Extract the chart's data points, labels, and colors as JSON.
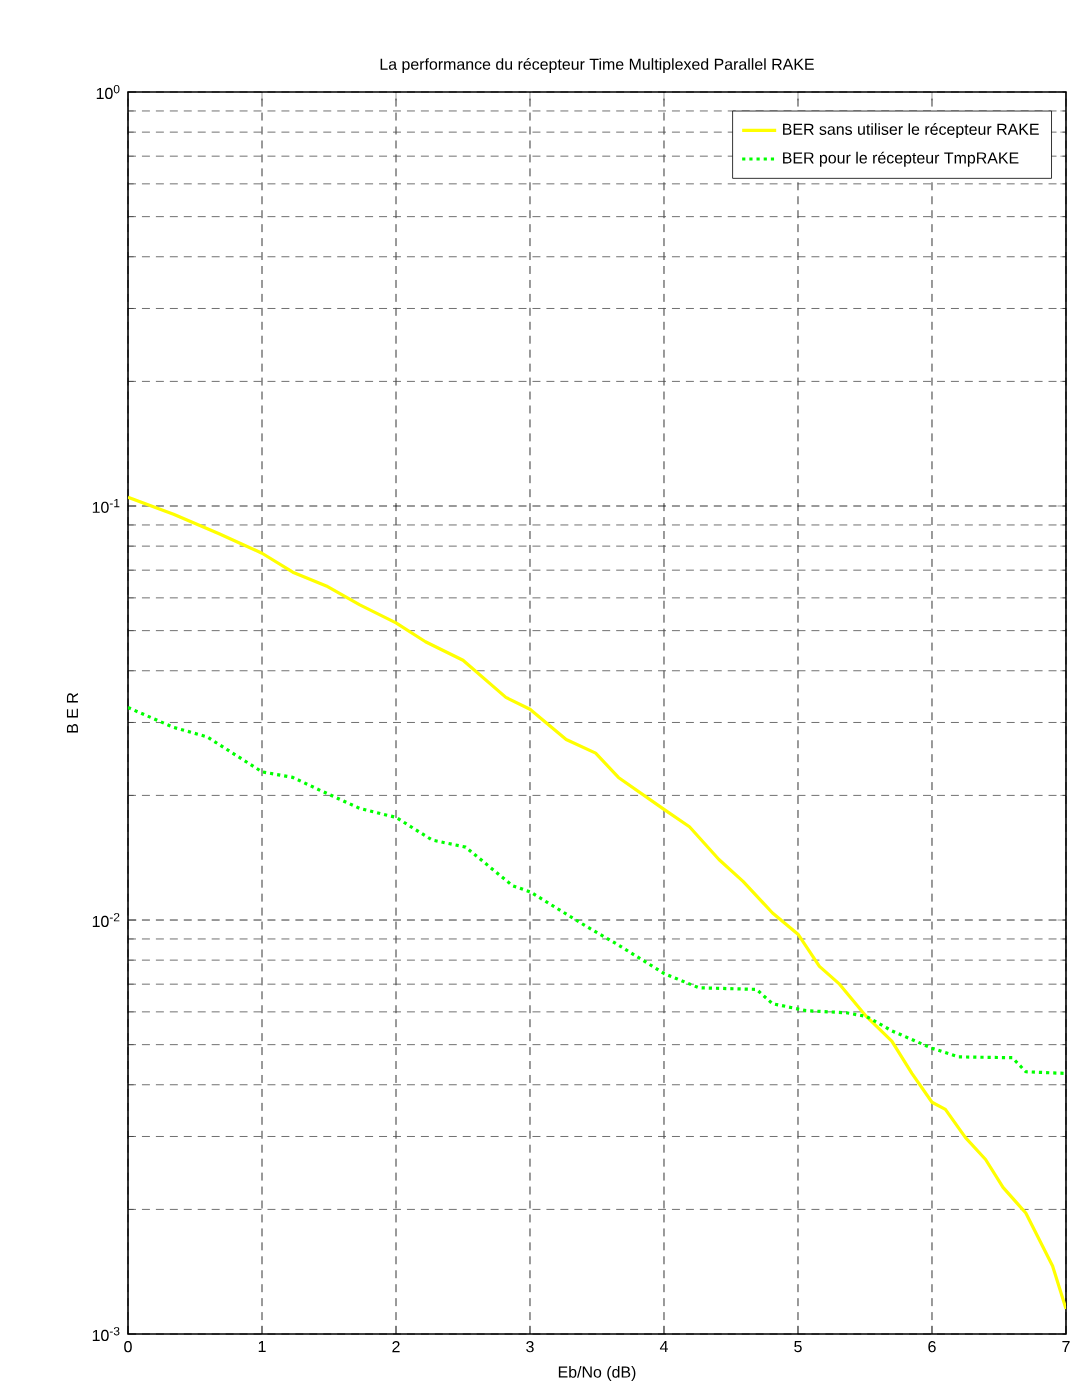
{
  "chart_data": {
    "type": "line",
    "title": "La performance du récepteur Time Multiplexed Parallel RAKE",
    "xlabel": "Eb/No (dB)",
    "ylabel": "B E R",
    "log": "y",
    "grid": true,
    "legend": "top right",
    "xlim": [
      0,
      7
    ],
    "xticks": [
      0,
      1,
      2,
      3,
      4,
      5,
      6,
      7
    ],
    "ylim": [
      0.001,
      1
    ],
    "yticks": [
      {
        "value": 0.001,
        "label": "10$^{-3}$"
      },
      {
        "value": 0.01,
        "label": "10$^{-2}$"
      },
      {
        "value": 0.1,
        "label": "10$^{-1}$"
      },
      {
        "value": 1,
        "label": "10$^{0}$"
      }
    ],
    "series": [
      {
        "name": "BER sans utiliser le récepteur RAKE",
        "color": "#ffff00",
        "line_style": "solid",
        "x": [
          0,
          0.34,
          0.68,
          1,
          1.23,
          1.48,
          1.73,
          2,
          2.22,
          2.5,
          2.82,
          3,
          3.27,
          3.49,
          3.66,
          4,
          4.19,
          4.41,
          4.59,
          4.81,
          5,
          5.16,
          5.31,
          5.51,
          5.7,
          5.85,
          6,
          6.1,
          6.25,
          6.4,
          6.53,
          6.7,
          6.9,
          7
        ],
        "values": [
          0.105,
          0.0955,
          0.0857,
          0.0769,
          0.0692,
          0.0641,
          0.0577,
          0.0522,
          0.047,
          0.0424,
          0.0345,
          0.0323,
          0.0273,
          0.0253,
          0.0221,
          0.0185,
          0.0168,
          0.014,
          0.0124,
          0.0104,
          0.00924,
          0.00773,
          0.007,
          0.00585,
          0.0051,
          0.00426,
          0.00363,
          0.00349,
          0.00298,
          0.00264,
          0.00226,
          0.00196,
          0.00146,
          0.00115
        ]
      },
      {
        "name": "BER pour le récepteur TmpRAKE",
        "color": "#00ff00",
        "line_style": "dotted",
        "x": [
          0,
          0.34,
          0.59,
          1,
          1.23,
          1.43,
          1.73,
          2,
          2.27,
          2.52,
          2.87,
          3,
          3.41,
          3.66,
          4,
          4.26,
          4.69,
          4.81,
          5.06,
          5.36,
          5.51,
          5.7,
          6,
          6.2,
          6.6,
          6.7,
          7
        ],
        "values": [
          0.0326,
          0.0292,
          0.0277,
          0.0228,
          0.0221,
          0.0206,
          0.0186,
          0.0177,
          0.0156,
          0.015,
          0.0121,
          0.0117,
          0.0097,
          0.0087,
          0.00743,
          0.00686,
          0.0068,
          0.00628,
          0.00604,
          0.00597,
          0.00585,
          0.0054,
          0.0049,
          0.00467,
          0.00465,
          0.0043,
          0.00426
        ]
      }
    ]
  }
}
